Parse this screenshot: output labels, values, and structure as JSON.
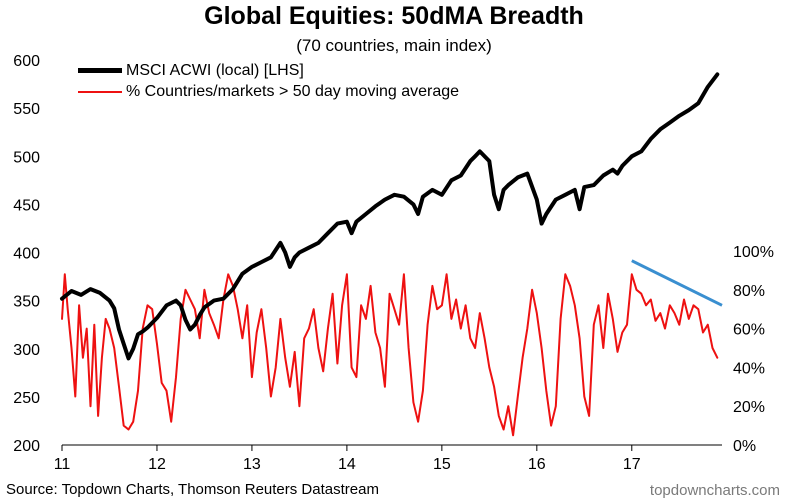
{
  "chart_data": {
    "type": "line",
    "title": "Global Equities: 50dMA Breadth",
    "subtitle": "(70 countries, main index)",
    "x_ticks": [
      "11",
      "12",
      "13",
      "14",
      "15",
      "16",
      "17"
    ],
    "x_tick_values": [
      2011,
      2012,
      2013,
      2014,
      2015,
      2016,
      2017
    ],
    "xlim": [
      2011,
      2017.95
    ],
    "left_axis": {
      "ticks": [
        "200",
        "250",
        "300",
        "350",
        "400",
        "450",
        "500",
        "550",
        "600"
      ],
      "ylim": [
        200,
        600
      ]
    },
    "right_axis": {
      "ticks": [
        "0%",
        "20%",
        "40%",
        "60%",
        "80%",
        "100%"
      ],
      "ylim": [
        0,
        100
      ]
    },
    "legend_position": "top-left",
    "series": [
      {
        "name": "MSCI ACWI (local) [LHS]",
        "axis": "left",
        "color": "#000000",
        "x": [
          2011.0,
          2011.1,
          2011.2,
          2011.3,
          2011.4,
          2011.5,
          2011.55,
          2011.6,
          2011.65,
          2011.7,
          2011.75,
          2011.8,
          2011.85,
          2011.9,
          2012.0,
          2012.1,
          2012.2,
          2012.25,
          2012.3,
          2012.35,
          2012.4,
          2012.45,
          2012.5,
          2012.6,
          2012.7,
          2012.8,
          2012.9,
          2013.0,
          2013.1,
          2013.2,
          2013.3,
          2013.35,
          2013.4,
          2013.45,
          2013.5,
          2013.6,
          2013.7,
          2013.8,
          2013.9,
          2014.0,
          2014.05,
          2014.1,
          2014.2,
          2014.3,
          2014.4,
          2014.5,
          2014.6,
          2014.7,
          2014.75,
          2014.8,
          2014.9,
          2015.0,
          2015.1,
          2015.2,
          2015.3,
          2015.35,
          2015.4,
          2015.5,
          2015.55,
          2015.6,
          2015.65,
          2015.7,
          2015.8,
          2015.9,
          2016.0,
          2016.05,
          2016.1,
          2016.2,
          2016.3,
          2016.4,
          2016.45,
          2016.5,
          2016.6,
          2016.7,
          2016.8,
          2016.85,
          2016.9,
          2017.0,
          2017.1,
          2017.2,
          2017.3,
          2017.4,
          2017.5,
          2017.6,
          2017.7,
          2017.8,
          2017.9
        ],
        "values": [
          352,
          360,
          356,
          362,
          358,
          350,
          342,
          320,
          305,
          290,
          300,
          315,
          318,
          322,
          332,
          345,
          350,
          345,
          330,
          320,
          325,
          335,
          343,
          350,
          352,
          362,
          378,
          385,
          390,
          395,
          410,
          400,
          385,
          395,
          400,
          405,
          410,
          420,
          430,
          432,
          420,
          432,
          440,
          448,
          455,
          460,
          458,
          450,
          440,
          458,
          465,
          460,
          475,
          480,
          495,
          500,
          505,
          495,
          460,
          445,
          465,
          470,
          478,
          482,
          455,
          430,
          440,
          455,
          460,
          465,
          445,
          468,
          470,
          480,
          486,
          482,
          490,
          500,
          505,
          518,
          528,
          535,
          542,
          548,
          555,
          572,
          585
        ]
      },
      {
        "name": "% Countries/markets > 50 day moving average",
        "axis": "right",
        "color": "#ee1111",
        "x": [
          2011.0,
          2011.03,
          2011.06,
          2011.1,
          2011.14,
          2011.18,
          2011.22,
          2011.26,
          2011.3,
          2011.34,
          2011.38,
          2011.42,
          2011.46,
          2011.5,
          2011.55,
          2011.6,
          2011.65,
          2011.7,
          2011.75,
          2011.8,
          2011.85,
          2011.9,
          2011.95,
          2012.0,
          2012.05,
          2012.1,
          2012.15,
          2012.2,
          2012.25,
          2012.3,
          2012.35,
          2012.4,
          2012.45,
          2012.5,
          2012.55,
          2012.6,
          2012.65,
          2012.7,
          2012.75,
          2012.8,
          2012.85,
          2012.9,
          2012.95,
          2013.0,
          2013.05,
          2013.1,
          2013.15,
          2013.2,
          2013.25,
          2013.3,
          2013.35,
          2013.4,
          2013.45,
          2013.5,
          2013.55,
          2013.6,
          2013.65,
          2013.7,
          2013.75,
          2013.8,
          2013.85,
          2013.9,
          2013.95,
          2014.0,
          2014.05,
          2014.1,
          2014.15,
          2014.2,
          2014.25,
          2014.3,
          2014.35,
          2014.4,
          2014.45,
          2014.5,
          2014.55,
          2014.6,
          2014.65,
          2014.7,
          2014.75,
          2014.8,
          2014.85,
          2014.9,
          2014.95,
          2015.0,
          2015.05,
          2015.1,
          2015.15,
          2015.2,
          2015.25,
          2015.3,
          2015.35,
          2015.4,
          2015.45,
          2015.5,
          2015.55,
          2015.6,
          2015.65,
          2015.7,
          2015.75,
          2015.8,
          2015.85,
          2015.9,
          2015.95,
          2016.0,
          2016.05,
          2016.1,
          2016.15,
          2016.2,
          2016.25,
          2016.3,
          2016.35,
          2016.4,
          2016.45,
          2016.5,
          2016.55,
          2016.6,
          2016.65,
          2016.7,
          2016.75,
          2016.8,
          2016.85,
          2016.9,
          2016.95,
          2017.0,
          2017.05,
          2017.1,
          2017.15,
          2017.2,
          2017.25,
          2017.3,
          2017.35,
          2017.4,
          2017.45,
          2017.5,
          2017.55,
          2017.6,
          2017.65,
          2017.7,
          2017.75,
          2017.8,
          2017.85,
          2017.9
        ],
        "values": [
          65,
          88,
          70,
          50,
          25,
          72,
          45,
          60,
          20,
          62,
          15,
          45,
          65,
          60,
          50,
          30,
          10,
          8,
          12,
          28,
          60,
          72,
          70,
          52,
          32,
          28,
          12,
          35,
          65,
          80,
          75,
          70,
          55,
          80,
          68,
          62,
          55,
          75,
          88,
          82,
          70,
          55,
          72,
          35,
          58,
          70,
          50,
          25,
          40,
          65,
          45,
          30,
          48,
          20,
          55,
          60,
          70,
          50,
          38,
          60,
          78,
          42,
          72,
          88,
          40,
          35,
          72,
          65,
          82,
          58,
          50,
          30,
          78,
          70,
          62,
          88,
          50,
          22,
          12,
          28,
          62,
          82,
          70,
          72,
          88,
          65,
          75,
          60,
          72,
          55,
          50,
          68,
          55,
          40,
          30,
          15,
          8,
          20,
          5,
          25,
          45,
          60,
          80,
          68,
          50,
          28,
          10,
          20,
          65,
          88,
          82,
          72,
          55,
          25,
          15,
          62,
          72,
          50,
          78,
          65,
          48,
          58,
          62,
          88,
          80,
          78,
          72,
          75,
          64,
          68,
          60,
          72,
          68,
          62,
          75,
          65,
          72,
          70,
          58,
          62,
          50,
          45
        ]
      }
    ],
    "annotations": [
      {
        "type": "trend-line",
        "color": "#3a8fd0",
        "axis": "right",
        "x": [
          2017.0,
          2017.95
        ],
        "y": [
          95,
          72
        ]
      }
    ],
    "source": "Source: Topdown Charts, Thomson Reuters Datastream",
    "watermark": "topdowncharts.com"
  }
}
